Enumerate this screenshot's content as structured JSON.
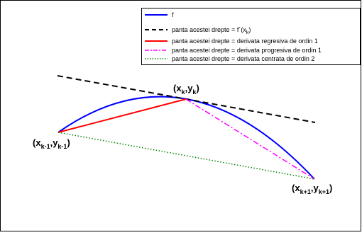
{
  "legend": {
    "items": [
      {
        "label": "f",
        "color": "#0000ff",
        "dash": "solid"
      },
      {
        "label": "panta acestei drepte = f´(x",
        "sub": "k",
        "tail": ")",
        "color": "#000000",
        "dash": "dashed"
      },
      {
        "label": "panta acestei drepte = derivata regresiva de ordin 1",
        "color": "#ff0000",
        "dash": "solid"
      },
      {
        "label": "panta acestei drepte = derivata progresiva de ordin 1",
        "color": "#ff00ff",
        "dash": "dashdot"
      },
      {
        "label": "panta acestei drepte = derivata centrata de ordin 2",
        "color": "#008000",
        "dash": "dotted"
      }
    ]
  },
  "points": {
    "prev": {
      "open": "(x",
      "sub1": "k-1",
      "mid": ",y",
      "sub2": "k-1",
      "close": ")"
    },
    "curr": {
      "open": "(x",
      "sub1": "k",
      "mid": ",y",
      "sub2": "k",
      "close": ")"
    },
    "next": {
      "open": "(x",
      "sub1": "k+1",
      "mid": ",y",
      "sub2": "k+1",
      "close": ")"
    }
  },
  "colors": {
    "curve": "#0000ff",
    "tangent": "#000000",
    "backward": "#ff0000",
    "forward": "#ff00ff",
    "central": "#008000"
  }
}
